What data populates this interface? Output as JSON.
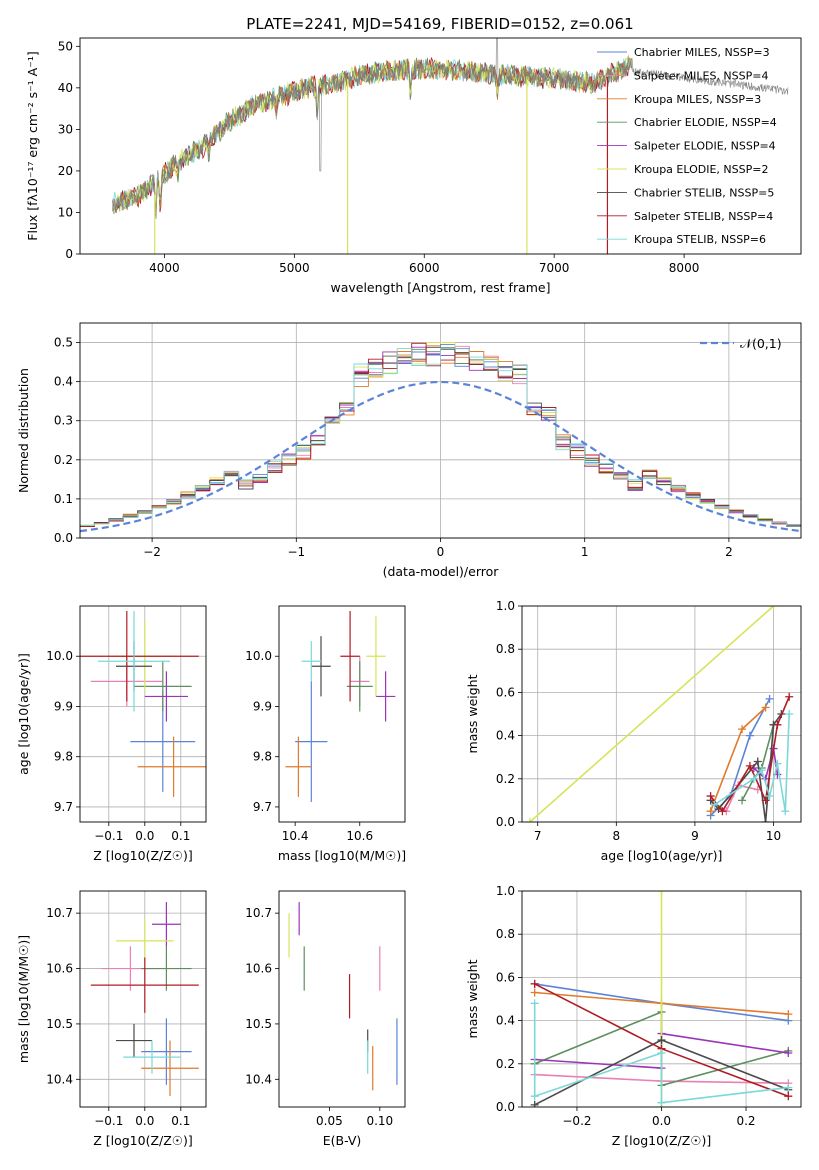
{
  "figure": {
    "title": "PLATE=2241, MJD=54169, FIBERID=0152, z=0.061",
    "series_colors": {
      "Chabrier MILES": "#5b84d8",
      "Salpeter MILES": "#e882b2",
      "Kroupa MILES": "#e07a2c",
      "Chabrier ELODIE": "#5e8f5e",
      "Salpeter ELODIE": "#9b34b8",
      "Kroupa ELODIE": "#d8e35a",
      "Chabrier STELIB": "#4a4a4a",
      "Salpeter STELIB": "#b01c26",
      "Kroupa STELIB": "#7ad8d8"
    }
  },
  "chart_data": [
    {
      "id": "spectrum",
      "type": "line",
      "xlabel": "wavelength [Angstrom, rest frame]",
      "ylabel": "Flux [fλ10⁻¹⁷ erg cm⁻² s⁻¹ A⁻¹]",
      "xlim": [
        3350,
        8900
      ],
      "ylim": [
        0,
        52
      ],
      "xticks": [
        4000,
        5000,
        6000,
        7000,
        8000
      ],
      "yticks": [
        0,
        10,
        20,
        30,
        40,
        50
      ],
      "legend_position": "right",
      "legend": [
        "Chabrier MILES, NSSP=3",
        "Salpeter MILES, NSSP=4",
        "Kroupa MILES, NSSP=3",
        "Chabrier ELODIE, NSSP=4",
        "Salpeter ELODIE, NSSP=4",
        "Kroupa ELODIE, NSSP=2",
        "Chabrier STELIB, NSSP=5",
        "Salpeter STELIB, NSSP=4",
        "Kroupa STELIB, NSSP=6"
      ],
      "continuum": {
        "x": [
          3600,
          3800,
          3950,
          4100,
          4300,
          4500,
          4700,
          4900,
          5100,
          5300,
          5500,
          5700,
          5900,
          6100,
          6300,
          6500,
          6700,
          6900,
          7100,
          7300,
          7500,
          7600
        ],
        "y": [
          12,
          14,
          18,
          22,
          26,
          32,
          36,
          38,
          40,
          41,
          43,
          44,
          44.5,
          44.5,
          44,
          43.5,
          43,
          42.5,
          42,
          41,
          44,
          46
        ]
      },
      "obs_extent": [
        3600,
        8800
      ]
    },
    {
      "id": "residual-hist",
      "type": "bar",
      "xlabel": "(data-model)/error",
      "ylabel": "Normed distribution",
      "xlim": [
        -2.5,
        2.5
      ],
      "ylim": [
        0,
        0.55
      ],
      "xticks": [
        -2,
        -1,
        0,
        1,
        2
      ],
      "yticks": [
        0.0,
        0.1,
        0.2,
        0.3,
        0.4,
        0.5
      ],
      "bin_width": 0.1,
      "legend": [
        "𝒩(0,1)"
      ],
      "legend_position": "top-right",
      "reference_curve": "gaussian(0,1)"
    },
    {
      "id": "age-vs-Z",
      "type": "scatter",
      "xlabel": "Z [log10(Z/Z☉)]",
      "ylabel": "age  [log10(age/yr)]",
      "xlim": [
        -0.18,
        0.17
      ],
      "ylim": [
        9.67,
        10.1
      ],
      "xticks": [
        -0.1,
        0.0,
        0.1
      ],
      "yticks": [
        9.7,
        9.8,
        9.9,
        10.0
      ],
      "points": [
        {
          "x": 0.05,
          "y": 9.83,
          "xerr": 0.09,
          "yerr": 0.1,
          "c": "Chabrier MILES"
        },
        {
          "x": -0.05,
          "y": 9.95,
          "xerr": 0.1,
          "yerr": 0.05,
          "c": "Salpeter MILES"
        },
        {
          "x": 0.08,
          "y": 9.78,
          "xerr": 0.1,
          "yerr": 0.06,
          "c": "Kroupa MILES"
        },
        {
          "x": 0.05,
          "y": 9.94,
          "xerr": 0.08,
          "yerr": 0.05,
          "c": "Chabrier ELODIE"
        },
        {
          "x": 0.06,
          "y": 9.92,
          "xerr": 0.06,
          "yerr": 0.05,
          "c": "Salpeter ELODIE"
        },
        {
          "x": 0.0,
          "y": 10.0,
          "xerr": 0.08,
          "yerr": 0.07,
          "c": "Kroupa ELODIE"
        },
        {
          "x": -0.03,
          "y": 9.98,
          "xerr": 0.05,
          "yerr": 0.05,
          "c": "Chabrier STELIB"
        },
        {
          "x": -0.05,
          "y": 10.0,
          "xerr": 0.2,
          "yerr": 0.09,
          "c": "Salpeter STELIB"
        },
        {
          "x": -0.03,
          "y": 9.99,
          "xerr": 0.1,
          "yerr": 0.1,
          "c": "Kroupa STELIB"
        }
      ]
    },
    {
      "id": "age-vs-mass",
      "type": "scatter",
      "xlabel": "mass [log10(M/M☉)]",
      "ylabel": "",
      "xlim": [
        10.35,
        10.74
      ],
      "ylim": [
        9.67,
        10.1
      ],
      "xticks": [
        10.4,
        10.6
      ],
      "yticks": [
        9.7,
        9.8,
        9.9,
        10.0
      ],
      "points": [
        {
          "x": 10.45,
          "y": 9.83,
          "xerr": 0.05,
          "yerr": 0.12,
          "c": "Chabrier MILES"
        },
        {
          "x": 10.6,
          "y": 9.95,
          "xerr": 0.03,
          "yerr": 0.05,
          "c": "Salpeter MILES"
        },
        {
          "x": 10.41,
          "y": 9.78,
          "xerr": 0.04,
          "yerr": 0.06,
          "c": "Kroupa MILES"
        },
        {
          "x": 10.6,
          "y": 9.94,
          "xerr": 0.04,
          "yerr": 0.05,
          "c": "Chabrier ELODIE"
        },
        {
          "x": 10.68,
          "y": 9.92,
          "xerr": 0.03,
          "yerr": 0.05,
          "c": "Salpeter ELODIE"
        },
        {
          "x": 10.65,
          "y": 10.0,
          "xerr": 0.03,
          "yerr": 0.08,
          "c": "Kroupa ELODIE"
        },
        {
          "x": 10.48,
          "y": 9.98,
          "xerr": 0.03,
          "yerr": 0.06,
          "c": "Chabrier STELIB"
        },
        {
          "x": 10.57,
          "y": 10.0,
          "xerr": 0.03,
          "yerr": 0.09,
          "c": "Salpeter STELIB"
        },
        {
          "x": 10.45,
          "y": 9.99,
          "xerr": 0.03,
          "yerr": 0.04,
          "c": "Kroupa STELIB"
        }
      ]
    },
    {
      "id": "mass-weight-vs-age",
      "type": "line",
      "xlabel": "age  [log10(age/yr)]",
      "ylabel": "mass weight",
      "xlim": [
        6.8,
        10.35
      ],
      "ylim": [
        0,
        1.0
      ],
      "xticks": [
        7,
        8,
        9,
        10
      ],
      "yticks": [
        0.0,
        0.2,
        0.4,
        0.6,
        0.8,
        1.0
      ],
      "series": [
        {
          "name": "Chabrier MILES",
          "x": [
            9.2,
            9.45,
            9.7,
            9.95
          ],
          "y": [
            0.03,
            0.12,
            0.4,
            0.57
          ]
        },
        {
          "name": "Salpeter MILES",
          "x": [
            9.2,
            9.4,
            9.55,
            9.8
          ],
          "y": [
            0.1,
            0.05,
            0.17,
            0.15
          ]
        },
        {
          "name": "Kroupa MILES",
          "x": [
            9.2,
            9.6,
            9.9
          ],
          "y": [
            0.05,
            0.43,
            0.53
          ]
        },
        {
          "name": "Chabrier ELODIE",
          "x": [
            9.6,
            9.75,
            9.85,
            10.0
          ],
          "y": [
            0.1,
            0.2,
            0.25,
            0.45
          ]
        },
        {
          "name": "Salpeter ELODIE",
          "x": [
            9.75,
            9.9,
            10.0,
            10.05
          ],
          "y": [
            0.25,
            0.2,
            0.34,
            0.22
          ]
        },
        {
          "name": "Kroupa ELODIE",
          "x": [
            6.9,
            10.0
          ],
          "y": [
            0.0,
            1.0
          ]
        },
        {
          "name": "Chabrier STELIB",
          "x": [
            9.2,
            9.3,
            9.8,
            9.9,
            10.0,
            10.1
          ],
          "y": [
            0.1,
            0.06,
            0.28,
            0.0,
            0.45,
            0.5
          ]
        },
        {
          "name": "Salpeter STELIB",
          "x": [
            9.2,
            9.35,
            9.7,
            9.9,
            10.05,
            10.2
          ],
          "y": [
            0.12,
            0.05,
            0.26,
            0.1,
            0.45,
            0.58
          ]
        },
        {
          "name": "Kroupa STELIB",
          "x": [
            9.25,
            9.75,
            9.85,
            9.95,
            10.05,
            10.15,
            10.2
          ],
          "y": [
            0.08,
            0.2,
            0.24,
            0.12,
            0.27,
            0.05,
            0.5
          ]
        }
      ]
    },
    {
      "id": "mass-vs-Z",
      "type": "scatter",
      "xlabel": "Z [log10(Z/Z☉)]",
      "ylabel": "mass [log10(M/M☉)]",
      "xlim": [
        -0.18,
        0.17
      ],
      "ylim": [
        10.35,
        10.74
      ],
      "xticks": [
        -0.1,
        0.0,
        0.1
      ],
      "yticks": [
        10.4,
        10.5,
        10.6,
        10.7
      ],
      "points": [
        {
          "x": 0.06,
          "y": 10.45,
          "xerr": 0.07,
          "yerr": 0.06,
          "c": "Chabrier MILES"
        },
        {
          "x": -0.04,
          "y": 10.6,
          "xerr": 0.08,
          "yerr": 0.04,
          "c": "Salpeter MILES"
        },
        {
          "x": 0.07,
          "y": 10.42,
          "xerr": 0.08,
          "yerr": 0.05,
          "c": "Kroupa MILES"
        },
        {
          "x": 0.06,
          "y": 10.6,
          "xerr": 0.07,
          "yerr": 0.04,
          "c": "Chabrier ELODIE"
        },
        {
          "x": 0.06,
          "y": 10.68,
          "xerr": 0.04,
          "yerr": 0.04,
          "c": "Salpeter ELODIE"
        },
        {
          "x": -0.0,
          "y": 10.65,
          "xerr": 0.08,
          "yerr": 0.04,
          "c": "Kroupa ELODIE"
        },
        {
          "x": -0.03,
          "y": 10.47,
          "xerr": 0.05,
          "yerr": 0.03,
          "c": "Chabrier STELIB"
        },
        {
          "x": 0.0,
          "y": 10.57,
          "xerr": 0.15,
          "yerr": 0.05,
          "c": "Salpeter STELIB"
        },
        {
          "x": 0.02,
          "y": 10.44,
          "xerr": 0.08,
          "yerr": 0.03,
          "c": "Kroupa STELIB"
        }
      ]
    },
    {
      "id": "mass-vs-ebv",
      "type": "scatter",
      "xlabel": "E(B-V)",
      "ylabel": "",
      "xlim": [
        0.0,
        0.125
      ],
      "ylim": [
        10.35,
        10.74
      ],
      "xticks": [
        0.05,
        0.1
      ],
      "yticks": [
        10.4,
        10.5,
        10.6,
        10.7
      ],
      "points": [
        {
          "x": 0.117,
          "y": 10.45,
          "xerr": 0.0,
          "yerr": 0.06,
          "c": "Chabrier MILES"
        },
        {
          "x": 0.1,
          "y": 10.6,
          "xerr": 0.0,
          "yerr": 0.04,
          "c": "Salpeter MILES"
        },
        {
          "x": 0.093,
          "y": 10.42,
          "xerr": 0.0,
          "yerr": 0.04,
          "c": "Kroupa MILES"
        },
        {
          "x": 0.025,
          "y": 10.6,
          "xerr": 0.0,
          "yerr": 0.04,
          "c": "Chabrier ELODIE"
        },
        {
          "x": 0.02,
          "y": 10.69,
          "xerr": 0.0,
          "yerr": 0.03,
          "c": "Salpeter ELODIE"
        },
        {
          "x": 0.01,
          "y": 10.66,
          "xerr": 0.0,
          "yerr": 0.04,
          "c": "Kroupa ELODIE"
        },
        {
          "x": 0.088,
          "y": 10.47,
          "xerr": 0.0,
          "yerr": 0.02,
          "c": "Chabrier STELIB"
        },
        {
          "x": 0.07,
          "y": 10.55,
          "xerr": 0.0,
          "yerr": 0.04,
          "c": "Salpeter STELIB"
        },
        {
          "x": 0.088,
          "y": 10.44,
          "xerr": 0.0,
          "yerr": 0.03,
          "c": "Kroupa STELIB"
        }
      ]
    },
    {
      "id": "mass-weight-vs-Z",
      "type": "line",
      "xlabel": "Z [log10(Z/Z☉)]",
      "ylabel": "mass weight",
      "xlim": [
        -0.33,
        0.33
      ],
      "ylim": [
        0,
        1.0
      ],
      "xticks": [
        -0.2,
        0.0,
        0.2
      ],
      "yticks": [
        0.0,
        0.2,
        0.4,
        0.6,
        0.8,
        1.0
      ],
      "series": [
        {
          "name": "Chabrier MILES",
          "x": [
            -0.3,
            0.0,
            0.3
          ],
          "y": [
            0.57,
            0.48,
            0.4
          ]
        },
        {
          "name": "Salpeter MILES",
          "x": [
            -0.3,
            0.0,
            0.3
          ],
          "y": [
            0.15,
            0.12,
            0.11
          ]
        },
        {
          "name": "Kroupa MILES",
          "x": [
            -0.3,
            0.0,
            0.3
          ],
          "y": [
            0.53,
            0.48,
            0.43
          ]
        },
        {
          "name": "Chabrier ELODIE",
          "x": [
            -0.3,
            0.0,
            0.0,
            0.3
          ],
          "y": [
            0.2,
            0.44,
            0.1,
            0.26
          ]
        },
        {
          "name": "Salpeter ELODIE",
          "x": [
            -0.3,
            0.0,
            0.0,
            0.3
          ],
          "y": [
            0.22,
            0.18,
            0.34,
            0.25
          ]
        },
        {
          "name": "Kroupa ELODIE",
          "x": [
            0.0,
            0.0
          ],
          "y": [
            0.0,
            1.0
          ]
        },
        {
          "name": "Chabrier STELIB",
          "x": [
            -0.3,
            0.0,
            0.3
          ],
          "y": [
            0.01,
            0.31,
            0.08
          ]
        },
        {
          "name": "Salpeter STELIB",
          "x": [
            -0.3,
            0.0,
            0.3
          ],
          "y": [
            0.57,
            0.27,
            0.05
          ]
        },
        {
          "name": "Kroupa STELIB",
          "x": [
            -0.3,
            -0.3,
            0.0,
            0.0,
            0.3
          ],
          "y": [
            0.48,
            0.05,
            0.25,
            0.02,
            0.09
          ]
        }
      ]
    }
  ]
}
